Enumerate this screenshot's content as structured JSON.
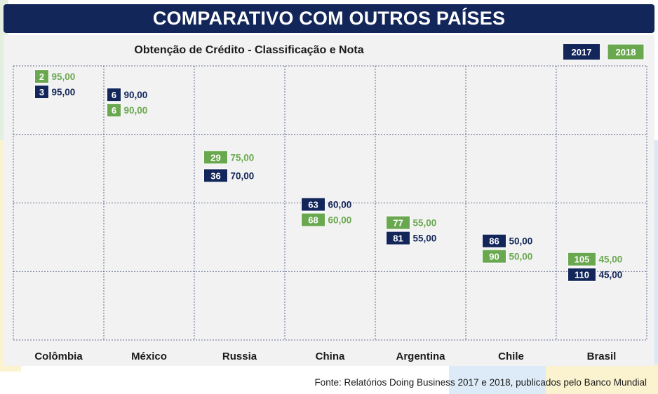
{
  "header": {
    "title": "COMPARATIVO COM OUTROS PAÍSES"
  },
  "source": "Fonte: Relatórios Doing Business 2017 e 2018, publicados pelo Banco Mundial",
  "colors": {
    "y2017": "#13265a",
    "y2018": "#6aa84f",
    "title_bg": "#13265a"
  },
  "chart_data": {
    "type": "scatter",
    "title": "Obtenção de Crédito - Classificação e Nota",
    "categories": [
      "Colômbia",
      "México",
      "Russia",
      "China",
      "Argentina",
      "Chile",
      "Brasil"
    ],
    "series": [
      {
        "name": "2017",
        "ranks": [
          "3",
          "6",
          "36",
          "63",
          "81",
          "86",
          "110"
        ],
        "scores": [
          "95,00",
          "90,00",
          "70,00",
          "60,00",
          "55,00",
          "50,00",
          "45,00"
        ],
        "values": [
          95,
          90,
          70,
          60,
          55,
          50,
          45
        ]
      },
      {
        "name": "2018",
        "ranks": [
          "2",
          "6",
          "29",
          "68",
          "77",
          "90",
          "105"
        ],
        "scores": [
          "95,00",
          "90,00",
          "75,00",
          "60,00",
          "55,00",
          "50,00",
          "45,00"
        ],
        "values": [
          95,
          90,
          75,
          60,
          55,
          50,
          45
        ]
      }
    ],
    "ylim": [
      25,
      100
    ],
    "grid": true,
    "legend": "top-right"
  }
}
